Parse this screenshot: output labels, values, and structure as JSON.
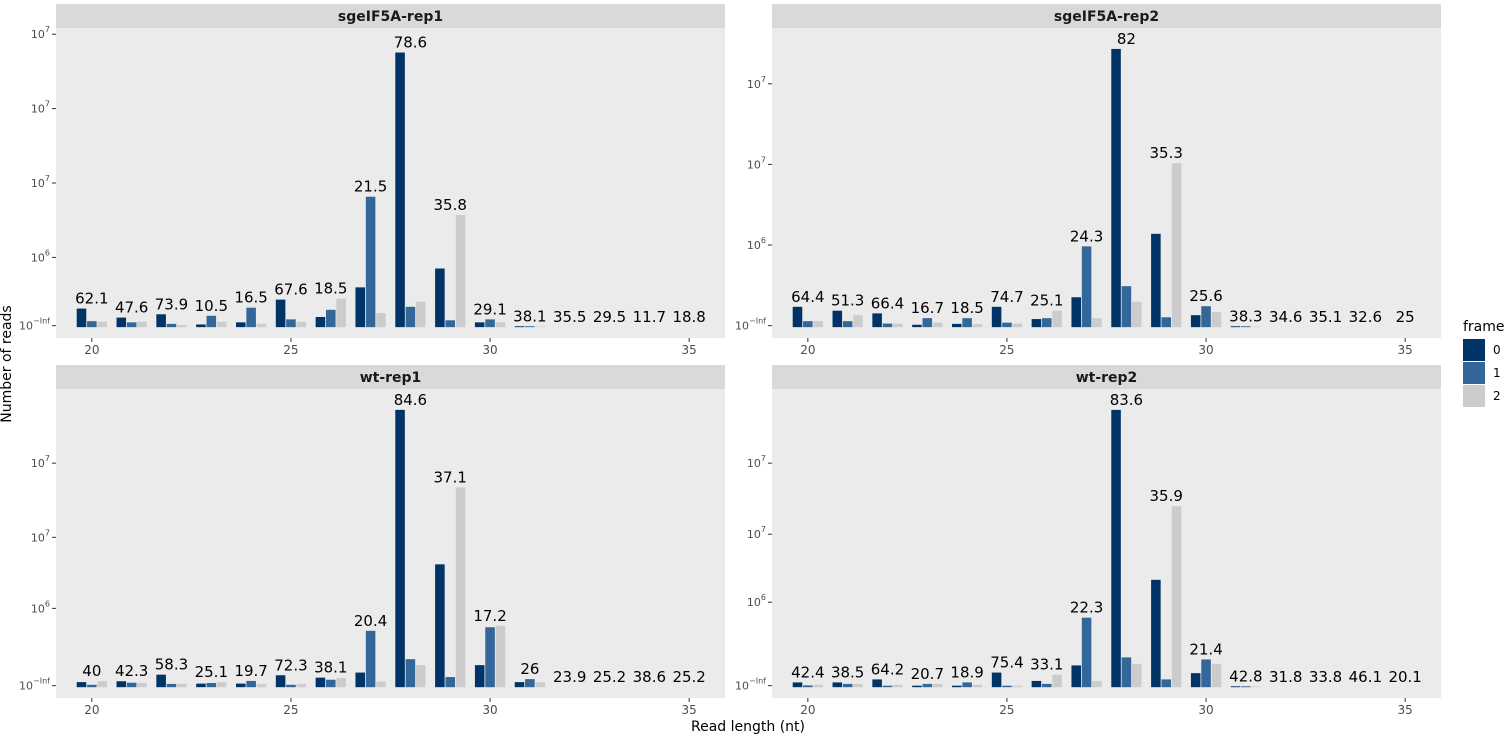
{
  "figure": {
    "xlabel": "Read length (nt)",
    "ylabel": "Number of reads",
    "legend": {
      "title": "frame",
      "placement": "right",
      "entries": [
        {
          "label": "0",
          "color": "#003366"
        },
        {
          "label": "1",
          "color": "#336699"
        },
        {
          "label": "2",
          "color": "#cccccc"
        }
      ]
    }
  },
  "colors": {
    "panel_bg": "#ebebeb",
    "strip_bg": "#d9d9d9",
    "frame0": "#003366",
    "frame1": "#336699",
    "frame2": "#cccccc"
  },
  "chart_data": [
    {
      "type": "bar",
      "title": "sgeIF5A-rep1",
      "y_scale": "log",
      "y_tick_labels": [
        "10^−Inf",
        "10^6",
        "10^7",
        "10^7",
        "10^7"
      ],
      "x_ticks": [
        20,
        25,
        30,
        35
      ],
      "x": [
        20,
        21,
        22,
        23,
        24,
        25,
        26,
        27,
        28,
        29,
        30,
        31,
        32,
        33,
        34,
        35
      ],
      "series": [
        {
          "name": "0",
          "values": [
            0.062,
            0.032,
            0.043,
            0.009,
            0.016,
            0.092,
            0.034,
            0.133,
            0.918,
            0.196,
            0.016,
            0.003,
            0,
            0,
            0,
            0
          ]
        },
        {
          "name": "1",
          "values": [
            0.02,
            0.016,
            0.011,
            0.038,
            0.065,
            0.026,
            0.058,
            0.436,
            0.068,
            0.023,
            0.026,
            0.003,
            0,
            0,
            0,
            0
          ]
        },
        {
          "name": "2",
          "values": [
            0.018,
            0.018,
            0.007,
            0.018,
            0.011,
            0.018,
            0.095,
            0.047,
            0.085,
            0.375,
            0.016,
            0.002,
            0,
            0,
            0,
            0
          ]
        }
      ],
      "labels": [
        "62.1",
        "47.6",
        "73.9",
        "10.5",
        "16.5",
        "67.6",
        "18.5",
        "21.5",
        "78.6",
        "35.8",
        "29.1",
        "38.1",
        "35.5",
        "29.5",
        "11.7",
        "18.8"
      ]
    },
    {
      "type": "bar",
      "title": "sgeIF5A-rep2",
      "y_scale": "log",
      "y_tick_labels": [
        "10^−Inf",
        "10^6",
        "10^7",
        "10^7"
      ],
      "x_ticks": [
        20,
        25,
        30,
        35
      ],
      "x": [
        20,
        21,
        22,
        23,
        24,
        25,
        26,
        27,
        28,
        29,
        30,
        31,
        32,
        33,
        34,
        35
      ],
      "series": [
        {
          "name": "0",
          "values": [
            0.068,
            0.055,
            0.046,
            0.008,
            0.011,
            0.068,
            0.027,
            0.1,
            0.93,
            0.312,
            0.04,
            0.003,
            0,
            0,
            0,
            0
          ]
        },
        {
          "name": "1",
          "values": [
            0.02,
            0.02,
            0.012,
            0.03,
            0.03,
            0.015,
            0.03,
            0.27,
            0.137,
            0.033,
            0.07,
            0.003,
            0,
            0,
            0,
            0
          ]
        },
        {
          "name": "2",
          "values": [
            0.02,
            0.04,
            0.012,
            0.015,
            0.01,
            0.012,
            0.055,
            0.03,
            0.085,
            0.548,
            0.05,
            0.002,
            0,
            0,
            0,
            0
          ]
        }
      ],
      "labels": [
        "64.4",
        "51.3",
        "66.4",
        "16.7",
        "18.5",
        "74.7",
        "25.1",
        "24.3",
        "82",
        "35.3",
        "25.6",
        "38.3",
        "34.6",
        "35.1",
        "32.6",
        "25"
      ]
    },
    {
      "type": "bar",
      "title": "wt-rep1",
      "y_scale": "log",
      "y_tick_labels": [
        "10^−Inf",
        "10^6",
        "10^7",
        "10^7"
      ],
      "x_ticks": [
        20,
        25,
        30,
        35
      ],
      "x": [
        20,
        21,
        22,
        23,
        24,
        25,
        26,
        27,
        28,
        29,
        30,
        31,
        32,
        33,
        34,
        35
      ],
      "series": [
        {
          "name": "0",
          "values": [
            0.017,
            0.02,
            0.042,
            0.012,
            0.012,
            0.04,
            0.032,
            0.049,
            0.93,
            0.412,
            0.074,
            0.017,
            0,
            0,
            0,
            0
          ]
        },
        {
          "name": "1",
          "values": [
            0.008,
            0.015,
            0.011,
            0.014,
            0.021,
            0.008,
            0.025,
            0.189,
            0.094,
            0.034,
            0.201,
            0.027,
            0,
            0,
            0,
            0
          ]
        },
        {
          "name": "2",
          "values": [
            0.02,
            0.014,
            0.011,
            0.017,
            0.011,
            0.011,
            0.031,
            0.019,
            0.074,
            0.67,
            0.206,
            0.017,
            0,
            0,
            0,
            0
          ]
        }
      ],
      "labels": [
        "40",
        "42.3",
        "58.3",
        "25.1",
        "19.7",
        "72.3",
        "38.1",
        "20.4",
        "84.6",
        "37.1",
        "17.2",
        "26",
        "23.9",
        "25.2",
        "38.6",
        "25.2"
      ]
    },
    {
      "type": "bar",
      "title": "wt-rep2",
      "y_scale": "log",
      "y_tick_labels": [
        "10^−Inf",
        "10^6",
        "10^7",
        "10^7"
      ],
      "x_ticks": [
        20,
        25,
        30,
        35
      ],
      "x": [
        20,
        21,
        22,
        23,
        24,
        25,
        26,
        27,
        28,
        29,
        30,
        31,
        32,
        33,
        34,
        35
      ],
      "series": [
        {
          "name": "0",
          "values": [
            0.016,
            0.016,
            0.026,
            0.005,
            0.005,
            0.049,
            0.021,
            0.073,
            0.93,
            0.36,
            0.047,
            0.003,
            0,
            0,
            0,
            0
          ]
        },
        {
          "name": "1",
          "values": [
            0.006,
            0.011,
            0.005,
            0.011,
            0.016,
            0.005,
            0.011,
            0.233,
            0.1,
            0.026,
            0.093,
            0.003,
            0,
            0,
            0,
            0
          ]
        },
        {
          "name": "2",
          "values": [
            0.008,
            0.011,
            0.008,
            0.011,
            0.008,
            0.005,
            0.042,
            0.021,
            0.078,
            0.607,
            0.078,
            0.002,
            0,
            0,
            0,
            0
          ]
        }
      ],
      "labels": [
        "42.4",
        "38.5",
        "64.2",
        "20.7",
        "18.9",
        "75.4",
        "33.1",
        "22.3",
        "83.6",
        "35.9",
        "21.4",
        "42.8",
        "31.8",
        "33.8",
        "46.1",
        "20.1"
      ]
    }
  ]
}
